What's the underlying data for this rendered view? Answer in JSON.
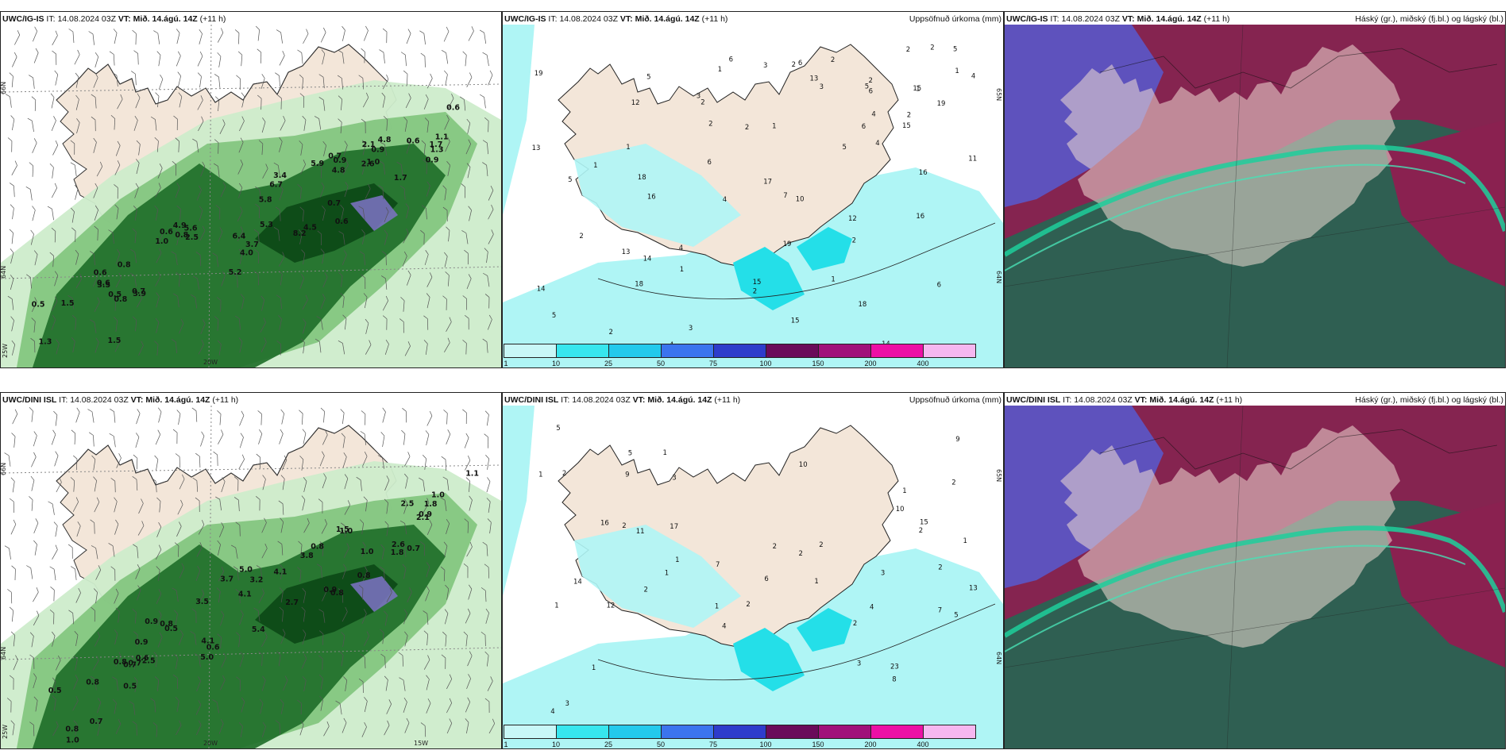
{
  "colors": {
    "land": "#f3e6d9",
    "sea": "#ffffff",
    "green_light": "#cdeccb",
    "green_mid": "#7fc47c",
    "green_dark": "#1f6f2a",
    "green_darkest": "#0d4a17",
    "cyan_light": "#aff5f5",
    "cyan_mid": "#24dfe8",
    "cloud_dark": "#2f5f52",
    "cloud_mauve": "#8a2150",
    "cloud_blue": "#5a58c9",
    "cloud_teal": "#1dcf9b"
  },
  "panels": [
    {
      "model": "UWC/IG-IS",
      "it_label": "IT:",
      "it_value": "14.08.2024 03Z",
      "vt_label": "VT:",
      "vt_value": "Mið. 14.ágú. 14Z",
      "lead": "(+11 h)",
      "wind_labels": [
        "0.5",
        "1.3",
        "1.5",
        "3.5",
        "1.5",
        "0.8",
        "0.6",
        "0.6",
        "0.5",
        "0.7",
        "0.8",
        "1.0",
        "3.9",
        "2.5",
        "0.8",
        "0.6",
        "4.9",
        "5.6",
        "5.2",
        "4.0",
        "3.7",
        "5.3",
        "5.8",
        "6.4",
        "6.7",
        "8.2",
        "4.5",
        "3.4",
        "5.9",
        "4.8",
        "0.6",
        "0.7",
        "0.9",
        "0.7",
        "2.6",
        "0.9",
        "2.1",
        "4.8",
        "1.0",
        "0.6",
        "1.7",
        "1.3",
        "1.7",
        "0.9",
        "1.1",
        "0.6"
      ],
      "axis_labels": [
        "66N",
        "64N",
        "25W",
        "20W"
      ]
    },
    {
      "model": "UWC/IG-IS",
      "it_label": "IT:",
      "it_value": "14.08.2024 03Z",
      "vt_label": "VT:",
      "vt_value": "Mið. 14.ágú. 14Z",
      "lead": "(+11 h)",
      "field": "Uppsöfnuð úrkoma (mm)",
      "precip_labels": [
        "2",
        "2",
        "1",
        "1",
        "1",
        "2",
        "1",
        "2",
        "4",
        "6",
        "4",
        "5",
        "1",
        "2",
        "2",
        "4",
        "1",
        "2",
        "6",
        "5",
        "4",
        "11",
        "13",
        "12",
        "6",
        "3",
        "6",
        "2",
        "5",
        "4",
        "6",
        "2",
        "3",
        "4",
        "5",
        "5",
        "6",
        "1",
        "2",
        "1",
        "2",
        "18",
        "13",
        "14",
        "19",
        "12",
        "15",
        "15",
        "14",
        "16",
        "16",
        "15",
        "18",
        "13",
        "15",
        "14",
        "18",
        "17",
        "16",
        "19",
        "19",
        "10",
        "3",
        "3",
        "2",
        "2",
        "5",
        "7"
      ],
      "axis_labels": [
        "65N",
        "64N"
      ],
      "colorbar_ticks": [
        "1",
        "10",
        "25",
        "50",
        "75",
        "100",
        "150",
        "200",
        "400"
      ],
      "colorbar_colors": [
        "#c8f7f7",
        "#37e6ee",
        "#23c9ec",
        "#3b74ee",
        "#2e3ccb",
        "#6a0b5a",
        "#a0107a",
        "#ec10a5",
        "#f6b7f0"
      ]
    },
    {
      "model": "UWC/IG-IS",
      "it_label": "IT:",
      "it_value": "14.08.2024 03Z",
      "vt_label": "VT:",
      "vt_value": "Mið. 14.ágú. 14Z",
      "lead": "(+11 h)",
      "field": "Háský (gr.), miðský (fj.bl.) og lágský (bl.)"
    },
    {
      "model": "UWC/DINI ISL",
      "it_label": "IT:",
      "it_value": "14.08.2024 03Z",
      "vt_label": "VT:",
      "vt_value": "Mið. 14.ágú. 14Z",
      "lead": "(+11 h)",
      "wind_labels": [
        "1.0",
        "0.5",
        "0.8",
        "0.7",
        "0.8",
        "0.8",
        "0.5",
        "0.7",
        "0.9",
        "0.6",
        "0.7",
        "0.9",
        "2.5",
        "0.5",
        "0.8",
        "0.6",
        "5.0",
        "3.5",
        "4.1",
        "5.4",
        "3.7",
        "4.1",
        "5.0",
        "3.2",
        "2.7",
        "4.1",
        "3.8",
        "0.8",
        "0.9",
        "1.0",
        "0.8",
        "0.8",
        "1.5",
        "1.0",
        "1.8",
        "2.5",
        "2.1",
        "2.6",
        "0.7",
        "0.9",
        "1.8",
        "1.1",
        "1.0"
      ],
      "axis_labels": [
        "66N",
        "64N",
        "25W",
        "20W",
        "15W"
      ]
    },
    {
      "model": "UWC/DINI ISL",
      "it_label": "IT:",
      "it_value": "14.08.2024 03Z",
      "vt_label": "VT:",
      "vt_value": "Mið. 14.ágú. 14Z",
      "lead": "(+11 h)",
      "field": "Uppsöfnuð úrkoma (mm)",
      "precip_labels": [
        "2",
        "2",
        "1",
        "1",
        "2",
        "1",
        "2",
        "2",
        "1",
        "1",
        "6",
        "2",
        "2",
        "1",
        "2",
        "1",
        "1",
        "5",
        "3",
        "4",
        "5",
        "3",
        "4",
        "3",
        "2",
        "3",
        "5",
        "1",
        "7",
        "14",
        "17",
        "12",
        "11",
        "10",
        "7",
        "8",
        "15",
        "13",
        "16",
        "23",
        "9",
        "10",
        "9",
        "4",
        "2",
        "2",
        "1"
      ],
      "axis_labels": [
        "65N",
        "64N"
      ],
      "colorbar_ticks": [
        "1",
        "10",
        "25",
        "50",
        "75",
        "100",
        "150",
        "200",
        "400"
      ],
      "colorbar_colors": [
        "#c8f7f7",
        "#37e6ee",
        "#23c9ec",
        "#3b74ee",
        "#2e3ccb",
        "#6a0b5a",
        "#a0107a",
        "#ec10a5",
        "#f6b7f0"
      ]
    },
    {
      "model": "UWC/DINI ISL",
      "it_label": "IT:",
      "it_value": "14.08.2024 03Z",
      "vt_label": "VT:",
      "vt_value": "Mið. 14.ágú. 14Z",
      "lead": "(+11 h)",
      "field": "Háský (gr.), miðský (fj.bl.) og lágský (bl.)"
    }
  ]
}
